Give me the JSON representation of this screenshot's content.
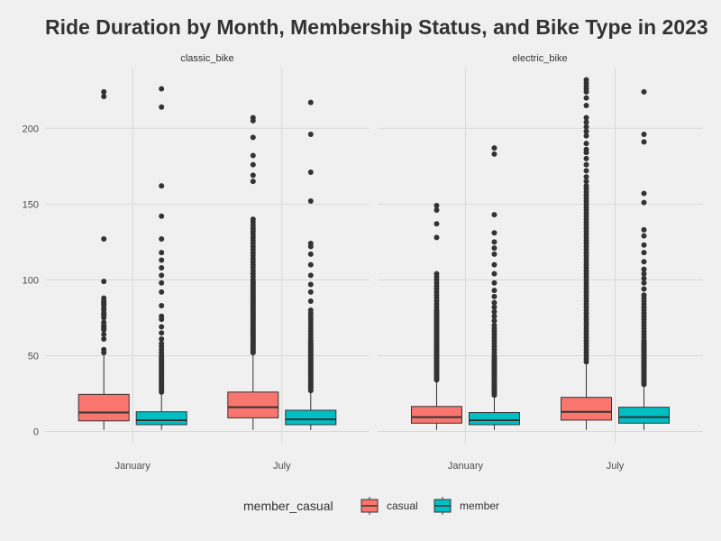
{
  "chart_data": {
    "type": "box",
    "title": "Ride Duration by Month, Membership Status, and Bike Type in 2023",
    "xlabel": "",
    "ylabel": "",
    "ylim": [
      -8,
      240
    ],
    "yticks": [
      0,
      50,
      100,
      150,
      200
    ],
    "panels": [
      "classic_bike",
      "electric_bike"
    ],
    "categories": [
      "January",
      "July"
    ],
    "legend": {
      "title": "member_casual",
      "position": "bottom",
      "entries": [
        "casual",
        "member"
      ]
    },
    "colors": {
      "casual": "#f8766d",
      "member": "#00bfc4",
      "background": "#f0f0f0",
      "grid": "#d9d9d9"
    },
    "series": [
      {
        "name": "casual",
        "boxes": [
          {
            "panel": "classic_bike",
            "category": "January",
            "min": 1,
            "q1": 7,
            "median": 12.5,
            "q3": 24.5,
            "max": 51,
            "outliers": [
              52,
              54,
              61,
              64,
              67,
              68,
              69,
              70,
              72,
              75,
              77,
              78,
              80,
              81,
              83,
              84,
              85,
              86,
              88,
              99,
              127,
              221,
              224
            ]
          },
          {
            "panel": "classic_bike",
            "category": "July",
            "min": 1,
            "q1": 9,
            "median": 16,
            "q3": 26,
            "max": 51,
            "outliers": [
              52,
              53,
              54,
              55,
              56,
              57,
              58,
              59,
              60,
              61,
              62,
              63,
              64,
              65,
              66,
              67,
              68,
              69,
              70,
              71,
              72,
              73,
              74,
              75,
              76,
              77,
              78,
              79,
              80,
              81,
              82,
              83,
              84,
              85,
              86,
              87,
              88,
              89,
              90,
              91,
              92,
              93,
              94,
              95,
              96,
              97,
              98,
              99,
              100,
              102,
              104,
              106,
              108,
              110,
              112,
              114,
              116,
              118,
              120,
              122,
              124,
              126,
              128,
              130,
              132,
              134,
              136,
              138,
              140,
              165,
              169,
              176,
              182,
              194,
              205,
              207
            ]
          },
          {
            "panel": "electric_bike",
            "category": "January",
            "min": 1,
            "q1": 5.5,
            "median": 9.5,
            "q3": 16.5,
            "max": 33,
            "outliers": [
              34,
              35,
              36,
              37,
              38,
              39,
              40,
              41,
              42,
              43,
              44,
              45,
              46,
              47,
              48,
              49,
              50,
              51,
              52,
              53,
              54,
              55,
              56,
              57,
              58,
              59,
              60,
              61,
              62,
              63,
              64,
              65,
              66,
              67,
              68,
              69,
              70,
              71,
              72,
              73,
              74,
              75,
              76,
              77,
              78,
              79,
              80,
              82,
              84,
              86,
              88,
              90,
              92,
              94,
              96,
              98,
              100,
              102,
              104,
              128,
              137,
              146,
              149
            ]
          },
          {
            "panel": "electric_bike",
            "category": "July",
            "min": 1,
            "q1": 7.5,
            "median": 13,
            "q3": 22.5,
            "max": 45,
            "outliers": [
              46,
              48,
              50,
              52,
              54,
              56,
              58,
              60,
              62,
              64,
              66,
              68,
              70,
              72,
              74,
              76,
              78,
              80,
              82,
              84,
              86,
              88,
              90,
              92,
              94,
              96,
              98,
              100,
              102,
              104,
              106,
              108,
              110,
              112,
              114,
              116,
              118,
              120,
              122,
              124,
              126,
              128,
              130,
              132,
              134,
              136,
              138,
              140,
              142,
              144,
              146,
              148,
              150,
              152,
              154,
              156,
              158,
              160,
              162,
              165,
              168,
              172,
              176,
              180,
              184,
              186,
              190,
              195,
              198,
              201,
              204,
              207,
              215,
              220,
              224,
              226,
              228,
              230,
              232
            ]
          }
        ]
      },
      {
        "name": "member",
        "boxes": [
          {
            "panel": "classic_bike",
            "category": "January",
            "min": 1,
            "q1": 4.5,
            "median": 7.5,
            "q3": 13,
            "max": 25,
            "outliers": [
              26,
              27,
              28,
              29,
              30,
              31,
              32,
              33,
              34,
              35,
              36,
              37,
              38,
              39,
              40,
              41,
              42,
              43,
              44,
              45,
              46,
              47,
              48,
              49,
              50,
              52,
              54,
              56,
              58,
              61,
              65,
              69,
              74,
              76,
              83,
              92,
              98,
              103,
              108,
              113,
              118,
              127,
              142,
              162,
              214,
              226
            ]
          },
          {
            "panel": "classic_bike",
            "category": "July",
            "min": 1,
            "q1": 4.5,
            "median": 8,
            "q3": 14,
            "max": 26,
            "outliers": [
              27,
              28,
              29,
              30,
              31,
              32,
              33,
              34,
              35,
              36,
              37,
              38,
              39,
              40,
              41,
              42,
              43,
              44,
              45,
              46,
              47,
              48,
              49,
              50,
              51,
              52,
              53,
              54,
              55,
              56,
              57,
              58,
              59,
              60,
              62,
              64,
              66,
              68,
              70,
              72,
              74,
              76,
              78,
              80,
              86,
              92,
              97,
              103,
              110,
              117,
              122,
              124,
              152,
              171,
              196,
              217
            ]
          },
          {
            "panel": "electric_bike",
            "category": "January",
            "min": 1,
            "q1": 4.5,
            "median": 7.5,
            "q3": 12.5,
            "max": 23,
            "outliers": [
              24,
              25,
              26,
              27,
              28,
              29,
              30,
              31,
              32,
              33,
              34,
              35,
              36,
              37,
              38,
              39,
              40,
              41,
              42,
              43,
              44,
              45,
              46,
              47,
              48,
              49,
              50,
              52,
              54,
              56,
              58,
              60,
              62,
              64,
              66,
              68,
              70,
              73,
              76,
              79,
              82,
              85,
              89,
              93,
              98,
              104,
              110,
              117,
              121,
              125,
              131,
              143,
              183,
              187
            ]
          },
          {
            "panel": "electric_bike",
            "category": "July",
            "min": 1,
            "q1": 5.5,
            "median": 9.5,
            "q3": 16,
            "max": 30,
            "outliers": [
              31,
              32,
              33,
              34,
              35,
              36,
              37,
              38,
              39,
              40,
              41,
              42,
              43,
              44,
              45,
              46,
              47,
              48,
              49,
              50,
              51,
              52,
              53,
              54,
              55,
              56,
              57,
              58,
              59,
              60,
              62,
              64,
              66,
              68,
              70,
              72,
              74,
              76,
              78,
              80,
              82,
              84,
              86,
              88,
              90,
              94,
              98,
              101,
              104,
              107,
              112,
              118,
              123,
              129,
              133,
              151,
              157,
              191,
              196,
              224
            ]
          }
        ]
      }
    ]
  }
}
